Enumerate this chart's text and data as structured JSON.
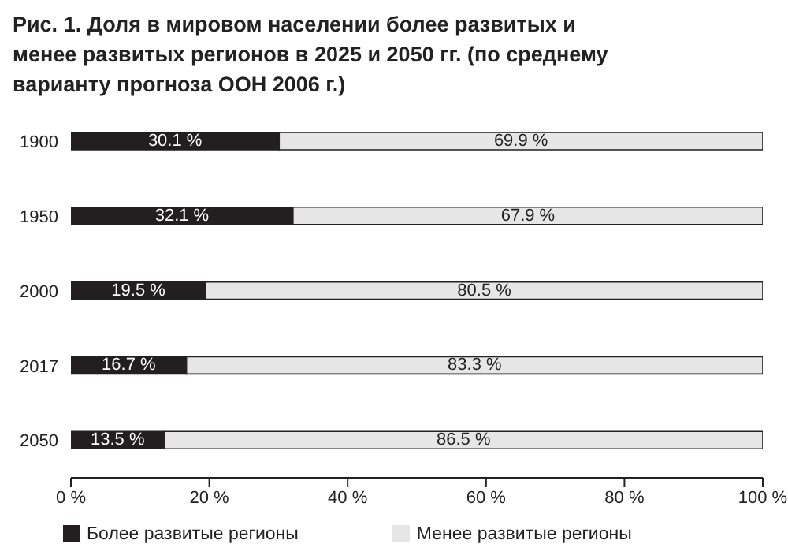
{
  "chart_data": {
    "type": "bar",
    "orientation": "horizontal",
    "stacked": true,
    "title": "Рис. 1. Доля в мировом населении более развитых и менее развитых регионов в 2025 и 2050 гг. (по среднему варианту прогноза ООН 2006 г.)",
    "categories": [
      "1900",
      "1950",
      "2000",
      "2017",
      "2050"
    ],
    "series": [
      {
        "name": "Более развитые регионы",
        "color": "#231f20",
        "values": [
          30.1,
          32.1,
          19.5,
          16.7,
          13.5
        ],
        "value_labels": [
          "30.1 %",
          "32.1 %",
          "19.5 %",
          "16.7 %",
          "13.5 %"
        ]
      },
      {
        "name": "Менее развитые регионы",
        "color": "#e6e6e6",
        "values": [
          69.9,
          67.9,
          80.5,
          83.3,
          86.5
        ],
        "value_labels": [
          "69.9 %",
          "67.9 %",
          "80.5 %",
          "83.3 %",
          "86.5 %"
        ]
      }
    ],
    "xlim": [
      0,
      100
    ],
    "xticks": [
      {
        "value": 0,
        "label": "0 %"
      },
      {
        "value": 20,
        "label": "20 %"
      },
      {
        "value": 40,
        "label": "40 %"
      },
      {
        "value": 60,
        "label": "60 %"
      },
      {
        "value": 80,
        "label": "80 %"
      },
      {
        "value": 100,
        "label": "100 %"
      }
    ],
    "grid": false,
    "legend": "bottom"
  }
}
